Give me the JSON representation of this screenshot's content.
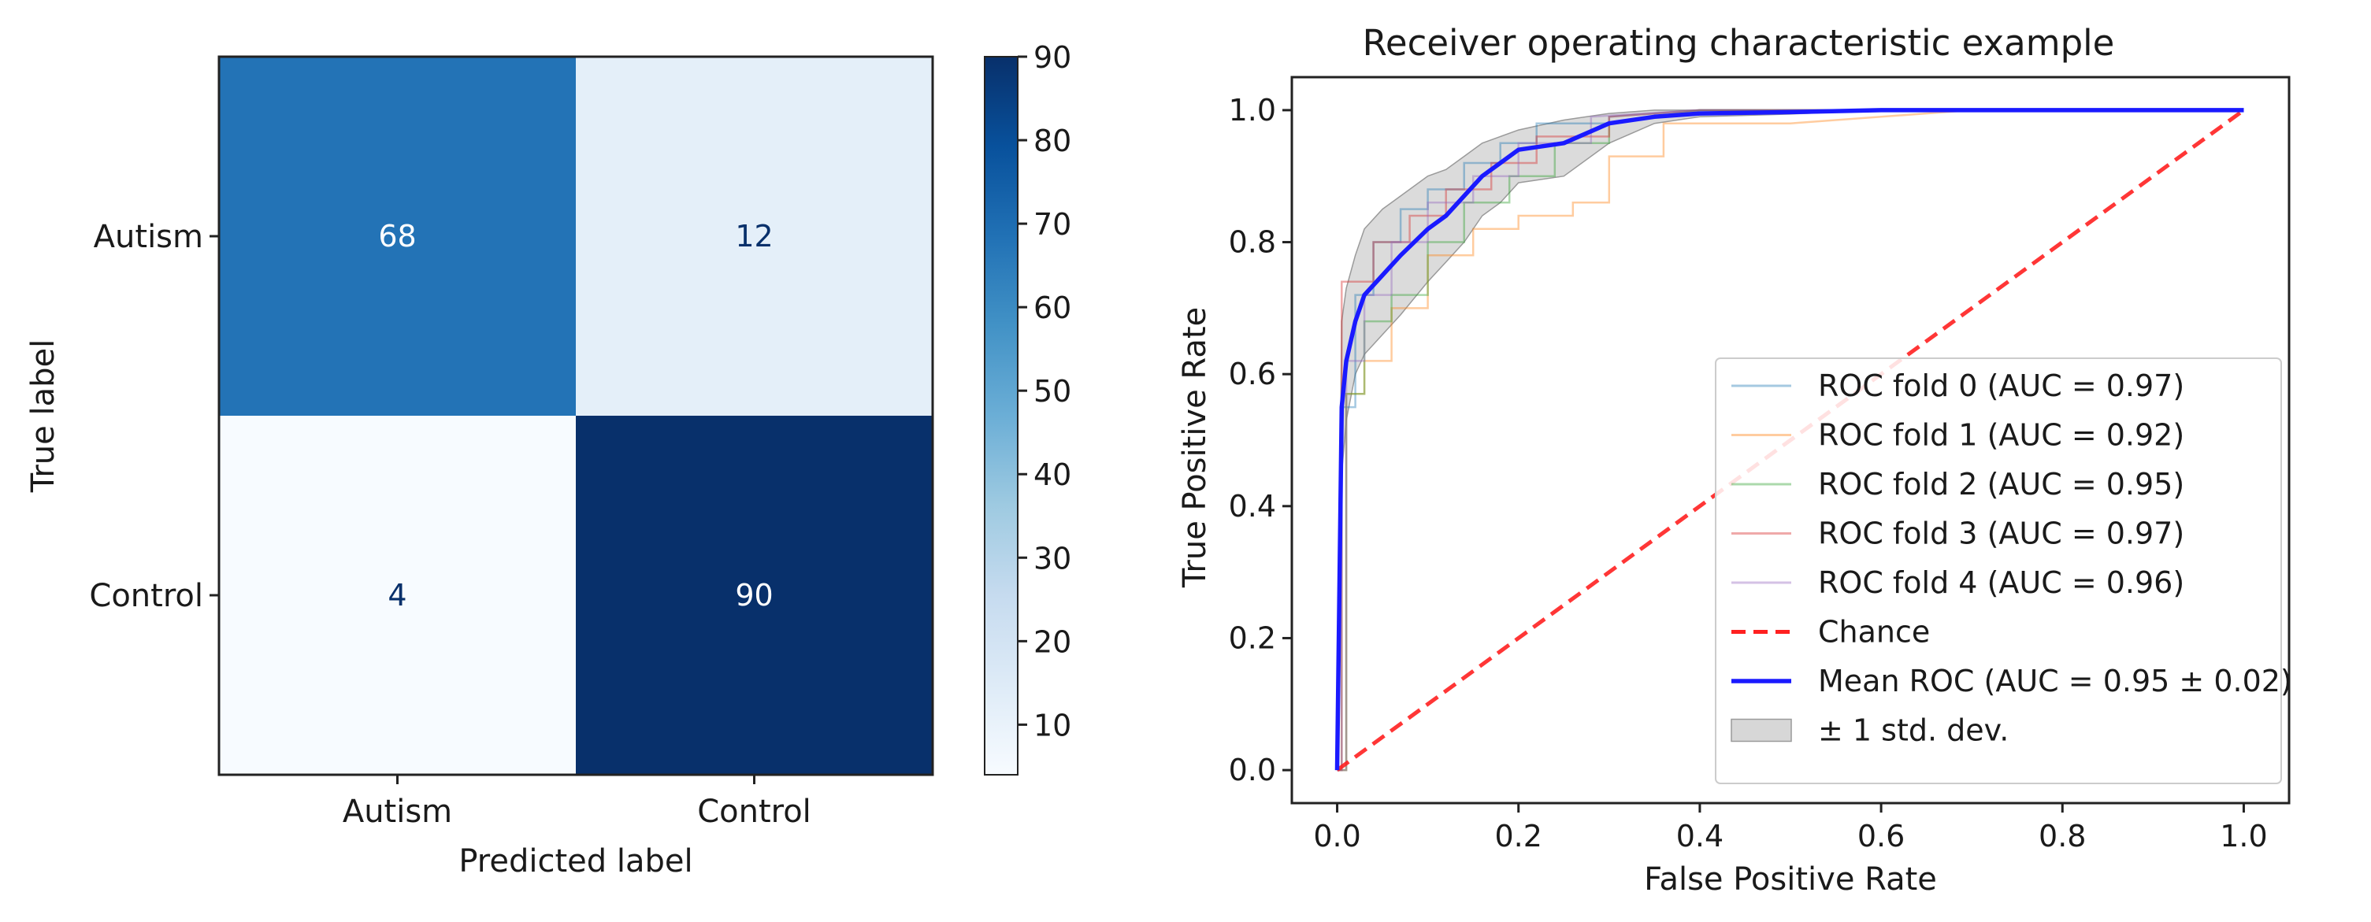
{
  "chart_data": [
    {
      "type": "heatmap",
      "title": "",
      "xlabel": "Predicted label",
      "ylabel": "True label",
      "x_categories": [
        "Autism",
        "Control"
      ],
      "y_categories": [
        "Autism",
        "Control"
      ],
      "values": [
        [
          68,
          12
        ],
        [
          4,
          90
        ]
      ],
      "colorbar": {
        "min": 4,
        "max": 90,
        "ticks": [
          10,
          20,
          30,
          40,
          50,
          60,
          70,
          80,
          90
        ],
        "colormap": "Blues"
      }
    },
    {
      "type": "line",
      "title": "Receiver operating characteristic example",
      "xlabel": "False Positive Rate",
      "ylabel": "True Positive Rate",
      "xlim": [
        -0.05,
        1.05
      ],
      "ylim": [
        -0.05,
        1.05
      ],
      "xticks": [
        "0.0",
        "0.2",
        "0.4",
        "0.6",
        "0.8",
        "1.0"
      ],
      "yticks": [
        "0.0",
        "0.2",
        "0.4",
        "0.6",
        "0.8",
        "1.0"
      ],
      "legend_position": "lower-right",
      "series": [
        {
          "name": "ROC fold 0 (AUC = 0.97)",
          "color": "#1f77b4",
          "style": "thin",
          "x": [
            0,
            0.005,
            0.005,
            0.02,
            0.02,
            0.04,
            0.04,
            0.07,
            0.07,
            0.1,
            0.1,
            0.14,
            0.14,
            0.18,
            0.18,
            0.22,
            0.22,
            0.3,
            0.3,
            0.4,
            0.6,
            1.0
          ],
          "y": [
            0,
            0,
            0.55,
            0.55,
            0.72,
            0.72,
            0.8,
            0.8,
            0.85,
            0.85,
            0.88,
            0.88,
            0.92,
            0.92,
            0.95,
            0.95,
            0.98,
            0.98,
            0.99,
            1.0,
            1.0,
            1.0
          ]
        },
        {
          "name": "ROC fold 1 (AUC = 0.92)",
          "color": "#ff7f0e",
          "style": "thin",
          "x": [
            0,
            0.01,
            0.01,
            0.03,
            0.03,
            0.06,
            0.06,
            0.1,
            0.1,
            0.15,
            0.15,
            0.2,
            0.2,
            0.26,
            0.26,
            0.3,
            0.3,
            0.36,
            0.36,
            0.5,
            0.7,
            1.0
          ],
          "y": [
            0,
            0,
            0.57,
            0.57,
            0.62,
            0.62,
            0.7,
            0.7,
            0.78,
            0.78,
            0.82,
            0.82,
            0.84,
            0.84,
            0.86,
            0.86,
            0.93,
            0.93,
            0.98,
            0.98,
            1.0,
            1.0
          ]
        },
        {
          "name": "ROC fold 2 (AUC = 0.95)",
          "color": "#2ca02c",
          "style": "thin",
          "x": [
            0,
            0.01,
            0.01,
            0.03,
            0.03,
            0.06,
            0.06,
            0.1,
            0.1,
            0.14,
            0.14,
            0.19,
            0.19,
            0.24,
            0.24,
            0.3,
            0.3,
            0.4,
            0.6,
            1.0
          ],
          "y": [
            0,
            0,
            0.57,
            0.57,
            0.68,
            0.68,
            0.72,
            0.72,
            0.8,
            0.8,
            0.86,
            0.86,
            0.9,
            0.9,
            0.95,
            0.95,
            0.98,
            1.0,
            1.0,
            1.0
          ]
        },
        {
          "name": "ROC fold 3 (AUC = 0.97)",
          "color": "#d62728",
          "style": "thin",
          "x": [
            0,
            0.005,
            0.005,
            0.04,
            0.04,
            0.08,
            0.08,
            0.12,
            0.12,
            0.17,
            0.17,
            0.22,
            0.22,
            0.3,
            0.3,
            0.4,
            0.6,
            1.0
          ],
          "y": [
            0,
            0,
            0.74,
            0.74,
            0.8,
            0.8,
            0.84,
            0.84,
            0.88,
            0.88,
            0.92,
            0.92,
            0.96,
            0.96,
            0.99,
            1.0,
            1.0,
            1.0
          ]
        },
        {
          "name": "ROC fold 4 (AUC = 0.96)",
          "color": "#9467bd",
          "style": "thin",
          "x": [
            0,
            0.01,
            0.01,
            0.03,
            0.03,
            0.06,
            0.06,
            0.1,
            0.1,
            0.15,
            0.15,
            0.2,
            0.2,
            0.28,
            0.28,
            0.4,
            0.6,
            1.0
          ],
          "y": [
            0,
            0,
            0.62,
            0.62,
            0.72,
            0.72,
            0.8,
            0.8,
            0.86,
            0.86,
            0.9,
            0.9,
            0.95,
            0.95,
            0.99,
            1.0,
            1.0,
            1.0
          ]
        },
        {
          "name": "Chance",
          "color": "#ff2020",
          "style": "dashed",
          "x": [
            0,
            1
          ],
          "y": [
            0,
            1
          ]
        },
        {
          "name": "Mean ROC (AUC = 0.95 ± 0.02)",
          "color": "#1a1aff",
          "style": "thick",
          "x": [
            0,
            0.005,
            0.01,
            0.02,
            0.03,
            0.05,
            0.07,
            0.1,
            0.12,
            0.14,
            0.16,
            0.18,
            0.2,
            0.25,
            0.3,
            0.35,
            0.4,
            0.5,
            0.6,
            0.8,
            1.0
          ],
          "y": [
            0,
            0.55,
            0.62,
            0.68,
            0.72,
            0.75,
            0.78,
            0.82,
            0.84,
            0.87,
            0.9,
            0.92,
            0.94,
            0.95,
            0.98,
            0.99,
            0.995,
            0.997,
            1.0,
            1.0,
            1.0
          ]
        }
      ],
      "band": {
        "name": "± 1 std. dev.",
        "color": "#bdbdbd",
        "x": [
          0,
          0.005,
          0.01,
          0.02,
          0.03,
          0.05,
          0.07,
          0.1,
          0.12,
          0.14,
          0.16,
          0.18,
          0.2,
          0.25,
          0.3,
          0.35,
          0.4,
          0.5,
          0.6,
          0.8,
          1.0
        ],
        "upper": [
          0,
          0.68,
          0.73,
          0.78,
          0.82,
          0.85,
          0.87,
          0.9,
          0.91,
          0.93,
          0.95,
          0.96,
          0.97,
          0.985,
          0.995,
          1.0,
          1.0,
          1.0,
          1.0,
          1.0,
          1.0
        ],
        "lower": [
          0,
          0.45,
          0.53,
          0.6,
          0.63,
          0.66,
          0.69,
          0.74,
          0.77,
          0.8,
          0.84,
          0.86,
          0.89,
          0.9,
          0.95,
          0.98,
          0.99,
          0.994,
          1.0,
          1.0,
          1.0
        ]
      }
    }
  ]
}
